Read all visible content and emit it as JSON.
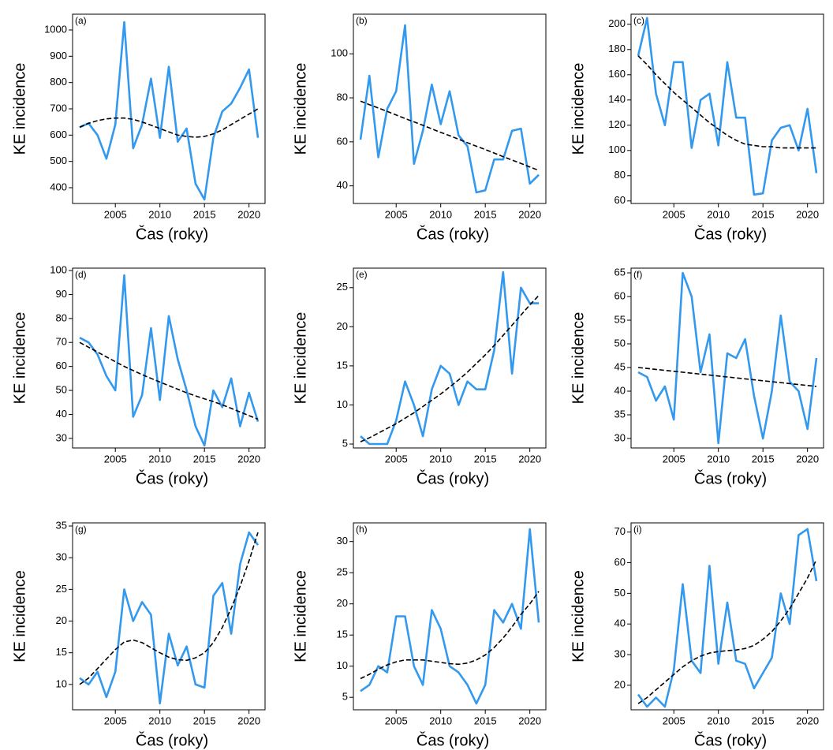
{
  "chart_data": [
    {
      "type": "line",
      "label": "(a)",
      "xlabel": "Čas (roky)",
      "ylabel": "KE incidence",
      "x": [
        2001,
        2002,
        2003,
        2004,
        2005,
        2006,
        2007,
        2008,
        2009,
        2010,
        2011,
        2012,
        2013,
        2014,
        2015,
        2016,
        2017,
        2018,
        2019,
        2020,
        2021
      ],
      "xlim": [
        2000.2,
        2021.8
      ],
      "xticks": [
        2005,
        2010,
        2015,
        2020
      ],
      "ylim": [
        340,
        1060
      ],
      "yticks": [
        400,
        500,
        600,
        700,
        800,
        900,
        1000
      ],
      "series": [
        {
          "color": "#3399ee",
          "values": [
            630,
            645,
            600,
            510,
            640,
            1030,
            550,
            640,
            815,
            590,
            860,
            575,
            625,
            415,
            355,
            590,
            690,
            720,
            780,
            850,
            590
          ]
        },
        {
          "color": "#000000",
          "dashed": true,
          "values": [
            630,
            645,
            655,
            662,
            665,
            665,
            660,
            650,
            638,
            625,
            612,
            600,
            595,
            592,
            595,
            605,
            620,
            640,
            660,
            680,
            700
          ]
        }
      ]
    },
    {
      "type": "line",
      "label": "(b)",
      "xlabel": "Čas (roky)",
      "ylabel": "KE incidence",
      "x": [
        2001,
        2002,
        2003,
        2004,
        2005,
        2006,
        2007,
        2008,
        2009,
        2010,
        2011,
        2012,
        2013,
        2014,
        2015,
        2016,
        2017,
        2018,
        2019,
        2020,
        2021
      ],
      "xlim": [
        2000.2,
        2021.8
      ],
      "xticks": [
        2005,
        2010,
        2015,
        2020
      ],
      "ylim": [
        32,
        118
      ],
      "yticks": [
        40,
        60,
        80,
        100
      ],
      "series": [
        {
          "color": "#3399ee",
          "values": [
            61,
            90,
            53,
            75,
            83,
            113,
            50,
            65,
            86,
            68,
            83,
            63,
            58,
            37,
            38,
            52,
            52,
            65,
            66,
            41,
            45
          ]
        },
        {
          "color": "#000000",
          "dashed": true,
          "values": [
            78.5,
            76.9,
            75.4,
            73.8,
            72.2,
            70.6,
            69.1,
            67.5,
            65.9,
            64.3,
            62.8,
            61.2,
            59.6,
            58,
            56.5,
            54.9,
            53.3,
            51.7,
            50.2,
            48.6,
            47
          ]
        }
      ]
    },
    {
      "type": "line",
      "label": "(c)",
      "xlabel": "Čas (roky)",
      "ylabel": "KE incidence",
      "x": [
        2001,
        2002,
        2003,
        2004,
        2005,
        2006,
        2007,
        2008,
        2009,
        2010,
        2011,
        2012,
        2013,
        2014,
        2015,
        2016,
        2017,
        2018,
        2019,
        2020,
        2021
      ],
      "xlim": [
        2000.2,
        2021.8
      ],
      "xticks": [
        2005,
        2010,
        2015,
        2020
      ],
      "ylim": [
        58,
        208
      ],
      "yticks": [
        60,
        80,
        100,
        120,
        140,
        160,
        180,
        200
      ],
      "series": [
        {
          "color": "#3399ee",
          "values": [
            175,
            205,
            145,
            120,
            170,
            170,
            102,
            140,
            145,
            104,
            170,
            126,
            126,
            65,
            66,
            108,
            118,
            120,
            100,
            133,
            82
          ]
        },
        {
          "color": "#000000",
          "dashed": true,
          "values": [
            175,
            168,
            160,
            153,
            146,
            140,
            134,
            128,
            122,
            117,
            112,
            108,
            105,
            104,
            103,
            103,
            102,
            102,
            102,
            102,
            102
          ]
        }
      ]
    },
    {
      "type": "line",
      "label": "(d)",
      "xlabel": "Čas (roky)",
      "ylabel": "KE incidence",
      "x": [
        2001,
        2002,
        2003,
        2004,
        2005,
        2006,
        2007,
        2008,
        2009,
        2010,
        2011,
        2012,
        2013,
        2014,
        2015,
        2016,
        2017,
        2018,
        2019,
        2020,
        2021
      ],
      "xlim": [
        2000.2,
        2021.8
      ],
      "xticks": [
        2005,
        2010,
        2015,
        2020
      ],
      "ylim": [
        26,
        101
      ],
      "yticks": [
        30,
        40,
        50,
        60,
        70,
        80,
        90,
        100
      ],
      "series": [
        {
          "color": "#3399ee",
          "values": [
            72,
            70,
            65,
            56,
            50,
            98,
            39,
            48,
            76,
            46,
            81,
            63,
            50,
            35,
            27,
            50,
            43,
            55,
            35,
            49,
            37
          ]
        },
        {
          "color": "#000000",
          "dashed": true,
          "values": [
            70,
            68,
            66,
            64,
            62,
            60,
            58.3,
            56.6,
            55,
            53.5,
            52,
            50.5,
            49,
            47.7,
            46.5,
            45.3,
            44,
            42.5,
            41,
            39.5,
            38
          ]
        }
      ]
    },
    {
      "type": "line",
      "label": "(e)",
      "xlabel": "Čas (roky)",
      "ylabel": "KE incidence",
      "x": [
        2001,
        2002,
        2003,
        2004,
        2005,
        2006,
        2007,
        2008,
        2009,
        2010,
        2011,
        2012,
        2013,
        2014,
        2015,
        2016,
        2017,
        2018,
        2019,
        2020,
        2021
      ],
      "xlim": [
        2000.2,
        2021.8
      ],
      "xticks": [
        2005,
        2010,
        2015,
        2020
      ],
      "ylim": [
        4.5,
        27.5
      ],
      "yticks": [
        5,
        10,
        15,
        20,
        25
      ],
      "series": [
        {
          "color": "#3399ee",
          "values": [
            6,
            5,
            5,
            5,
            8,
            13,
            10,
            6,
            12,
            15,
            14,
            10,
            13,
            12,
            12,
            17,
            27,
            14,
            25,
            23,
            23
          ]
        },
        {
          "color": "#000000",
          "dashed": true,
          "values": [
            5.3,
            5.8,
            6.4,
            7,
            7.6,
            8.3,
            9,
            9.8,
            10.6,
            11.4,
            12.3,
            13.2,
            14.2,
            15.3,
            16.4,
            17.6,
            18.9,
            20.2,
            21.5,
            22.8,
            24
          ]
        }
      ]
    },
    {
      "type": "line",
      "label": "(f)",
      "xlabel": "Čas (roky)",
      "ylabel": "KE incidence",
      "x": [
        2001,
        2002,
        2003,
        2004,
        2005,
        2006,
        2007,
        2008,
        2009,
        2010,
        2011,
        2012,
        2013,
        2014,
        2015,
        2016,
        2017,
        2018,
        2019,
        2020,
        2021
      ],
      "xlim": [
        2000.2,
        2021.8
      ],
      "xticks": [
        2005,
        2010,
        2015,
        2020
      ],
      "ylim": [
        28,
        66
      ],
      "yticks": [
        30,
        35,
        40,
        45,
        50,
        55,
        60,
        65
      ],
      "series": [
        {
          "color": "#3399ee",
          "values": [
            44,
            43,
            38,
            41,
            34,
            65,
            60,
            44,
            52,
            29,
            48,
            47,
            51,
            39,
            30,
            40,
            56,
            42,
            40,
            32,
            47
          ]
        },
        {
          "color": "#000000",
          "dashed": true,
          "values": [
            45,
            44.8,
            44.6,
            44.4,
            44.2,
            44,
            43.8,
            43.6,
            43.4,
            43.2,
            43,
            42.8,
            42.6,
            42.4,
            42.2,
            42,
            41.8,
            41.6,
            41.4,
            41.2,
            41
          ]
        }
      ]
    },
    {
      "type": "line",
      "label": "(g)",
      "xlabel": "Čas (roky)",
      "ylabel": "KE incidence",
      "x": [
        2001,
        2002,
        2003,
        2004,
        2005,
        2006,
        2007,
        2008,
        2009,
        2010,
        2011,
        2012,
        2013,
        2014,
        2015,
        2016,
        2017,
        2018,
        2019,
        2020,
        2021
      ],
      "xlim": [
        2000.2,
        2021.8
      ],
      "xticks": [
        2005,
        2010,
        2015,
        2020
      ],
      "ylim": [
        6,
        35.5
      ],
      "yticks": [
        10,
        15,
        20,
        25,
        30,
        35
      ],
      "series": [
        {
          "color": "#3399ee",
          "values": [
            11,
            10,
            12,
            8,
            12,
            25,
            20,
            23,
            21,
            7,
            18,
            13,
            16,
            10,
            9.5,
            24,
            26,
            18,
            29,
            34,
            32
          ]
        },
        {
          "color": "#000000",
          "dashed": true,
          "values": [
            10,
            11,
            12.5,
            14,
            15.5,
            16.7,
            17,
            16.6,
            15.8,
            15,
            14.3,
            13.9,
            13.8,
            14.2,
            15,
            16.6,
            19,
            22,
            25.5,
            29.5,
            34
          ]
        }
      ]
    },
    {
      "type": "line",
      "label": "(h)",
      "xlabel": "Čas (roky)",
      "ylabel": "KE incidence",
      "x": [
        2001,
        2002,
        2003,
        2004,
        2005,
        2006,
        2007,
        2008,
        2009,
        2010,
        2011,
        2012,
        2013,
        2014,
        2015,
        2016,
        2017,
        2018,
        2019,
        2020,
        2021
      ],
      "xlim": [
        2000.2,
        2021.8
      ],
      "xticks": [
        2005,
        2010,
        2015,
        2020
      ],
      "ylim": [
        3,
        33
      ],
      "yticks": [
        5,
        10,
        15,
        20,
        25,
        30
      ],
      "series": [
        {
          "color": "#3399ee",
          "values": [
            6,
            7,
            10,
            9,
            18,
            18,
            10,
            7,
            19,
            16,
            10,
            9,
            7,
            4,
            7,
            19,
            17,
            20,
            16,
            32,
            17
          ]
        },
        {
          "color": "#000000",
          "dashed": true,
          "values": [
            8,
            8.7,
            9.5,
            10.2,
            10.7,
            11,
            11,
            11,
            10.8,
            10.6,
            10.4,
            10.3,
            10.5,
            11,
            11.8,
            13,
            14.5,
            16.3,
            18.3,
            20,
            22
          ]
        }
      ]
    },
    {
      "type": "line",
      "label": "(i)",
      "xlabel": "Čas (roky)",
      "ylabel": "KE incidence",
      "x": [
        2001,
        2002,
        2003,
        2004,
        2005,
        2006,
        2007,
        2008,
        2009,
        2010,
        2011,
        2012,
        2013,
        2014,
        2015,
        2016,
        2017,
        2018,
        2019,
        2020,
        2021
      ],
      "xlim": [
        2000.2,
        2021.8
      ],
      "xticks": [
        2005,
        2010,
        2015,
        2020
      ],
      "ylim": [
        12,
        73
      ],
      "yticks": [
        20,
        30,
        40,
        50,
        60,
        70
      ],
      "series": [
        {
          "color": "#3399ee",
          "values": [
            17,
            13,
            16,
            13,
            25,
            53,
            28,
            24,
            59,
            27,
            47,
            28,
            27,
            19,
            24,
            29,
            50,
            40,
            69,
            71,
            54
          ]
        },
        {
          "color": "#000000",
          "dashed": true,
          "values": [
            14,
            16,
            18.5,
            21,
            23.5,
            26,
            28,
            29.5,
            30.5,
            31,
            31.3,
            31.5,
            32,
            33,
            35,
            37.5,
            41,
            45,
            50,
            55,
            61
          ]
        }
      ]
    }
  ]
}
